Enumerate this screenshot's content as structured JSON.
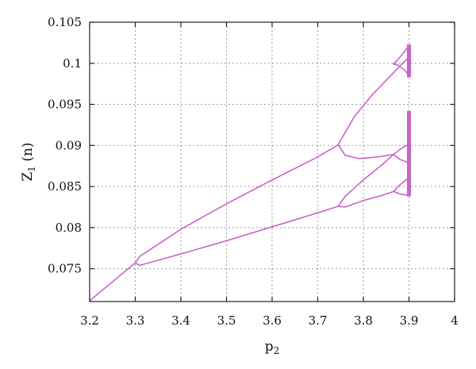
{
  "chart_data": {
    "type": "line",
    "xlabel": "p2",
    "ylabel": "Z1 (n)",
    "xlim": [
      3.2,
      4.0
    ],
    "ylim": [
      0.071,
      0.105
    ],
    "x_ticks": [
      "3.2",
      "3.3",
      "3.4",
      "3.5",
      "3.6",
      "3.7",
      "3.8",
      "3.9",
      "4"
    ],
    "y_ticks": [
      "0.075",
      "0.08",
      "0.085",
      "0.09",
      "0.095",
      "0.1",
      "0.105"
    ],
    "grid": true,
    "color": "#c864c8",
    "branches": [
      {
        "x": [
          3.2,
          3.3
        ],
        "y": [
          0.0711,
          0.0757
        ]
      },
      {
        "x": [
          3.3,
          3.31,
          3.4,
          3.5,
          3.6,
          3.7,
          3.745
        ],
        "y": [
          0.0757,
          0.0765,
          0.0798,
          0.0829,
          0.0858,
          0.0886,
          0.0901
        ]
      },
      {
        "x": [
          3.3,
          3.31,
          3.4,
          3.5,
          3.6,
          3.7,
          3.745
        ],
        "y": [
          0.0757,
          0.0754,
          0.0768,
          0.0784,
          0.0801,
          0.0818,
          0.0826
        ]
      },
      {
        "x": [
          3.745,
          3.75,
          3.78,
          3.82,
          3.86,
          3.9
        ],
        "y": [
          0.0901,
          0.0906,
          0.0935,
          0.0962,
          0.0985,
          0.1008
        ]
      },
      {
        "x": [
          3.745,
          3.76,
          3.79,
          3.83,
          3.866
        ],
        "y": [
          0.0901,
          0.0888,
          0.0884,
          0.0886,
          0.0889
        ]
      },
      {
        "x": [
          3.745,
          3.76,
          3.8,
          3.84,
          3.866
        ],
        "y": [
          0.0826,
          0.0838,
          0.0858,
          0.0876,
          0.0889
        ]
      },
      {
        "x": [
          3.745,
          3.76,
          3.8,
          3.84,
          3.866
        ],
        "y": [
          0.0826,
          0.0825,
          0.0833,
          0.0839,
          0.0844
        ]
      },
      {
        "x": [
          3.866,
          3.88,
          3.9
        ],
        "y": [
          0.0889,
          0.0895,
          0.0902
        ]
      },
      {
        "x": [
          3.866,
          3.88,
          3.9
        ],
        "y": [
          0.0889,
          0.0883,
          0.0879
        ]
      },
      {
        "x": [
          3.866,
          3.88,
          3.9
        ],
        "y": [
          0.0844,
          0.0852,
          0.0861
        ]
      },
      {
        "x": [
          3.866,
          3.88,
          3.9
        ],
        "y": [
          0.0844,
          0.0841,
          0.0839
        ]
      },
      {
        "x": [
          3.865,
          3.875,
          3.89,
          3.9
        ],
        "y": [
          0.0999,
          0.1004,
          0.1014,
          0.1022
        ]
      },
      {
        "x": [
          3.865,
          3.875,
          3.89,
          3.9
        ],
        "y": [
          0.0999,
          0.0998,
          0.0992,
          0.0985
        ]
      }
    ],
    "chaotic_bands": [
      {
        "x": 3.9,
        "y_range": [
          0.0983,
          0.1023
        ]
      },
      {
        "x": 3.9,
        "y_range": [
          0.0838,
          0.0942
        ]
      }
    ]
  }
}
